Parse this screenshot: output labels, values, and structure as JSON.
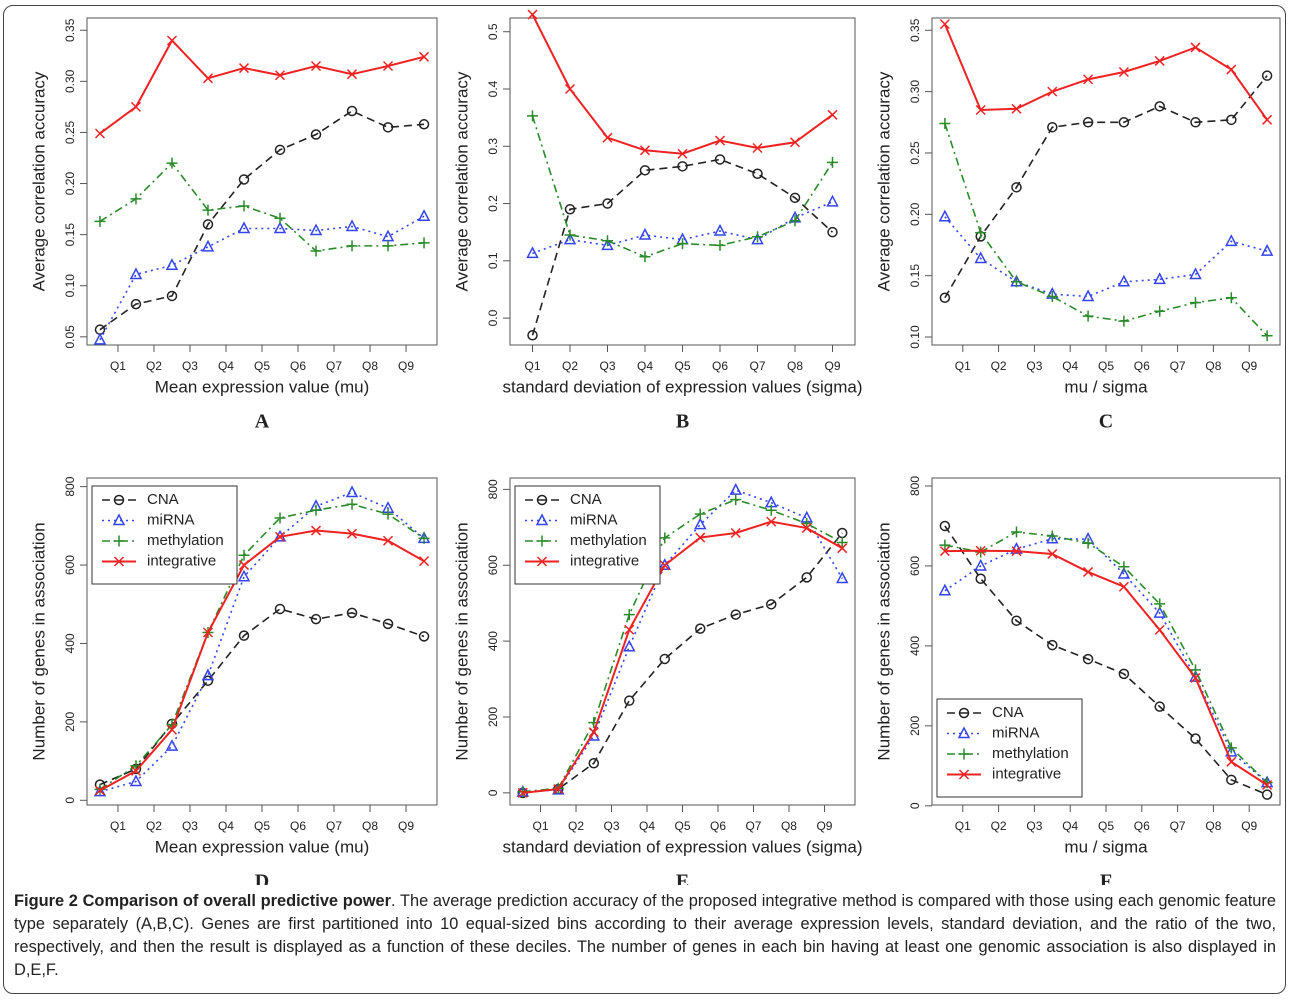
{
  "chart_data": [
    {
      "type": "line",
      "panel_label": "A",
      "xlabel": "Mean expression value (mu)",
      "ylabel": "Average correlation accuracy",
      "x": [
        0.5,
        1.5,
        2.5,
        3.5,
        4.5,
        5.5,
        6.5,
        7.5,
        8.5,
        9.5
      ],
      "xlim": [
        0.14,
        9.86
      ],
      "xticks": [
        {
          "value": 1,
          "label": "Q1"
        },
        {
          "value": 2,
          "label": "Q2"
        },
        {
          "value": 3,
          "label": "Q3"
        },
        {
          "value": 4,
          "label": "Q4"
        },
        {
          "value": 5,
          "label": "Q5"
        },
        {
          "value": 6,
          "label": "Q6"
        },
        {
          "value": 7,
          "label": "Q7"
        },
        {
          "value": 8,
          "label": "Q8"
        },
        {
          "value": 9,
          "label": "Q9"
        }
      ],
      "ylim": [
        0.042,
        0.362
      ],
      "yticks": [
        0.05,
        {
          "value": 0.1,
          "label": "0.10"
        },
        0.15,
        {
          "value": 0.2,
          "label": "0.20"
        },
        0.25,
        {
          "value": 0.3,
          "label": "0.30"
        },
        0.35
      ],
      "series": [
        {
          "color": "#222222",
          "marker": "circle",
          "linestyle": "dashed",
          "values": [
            0.057,
            0.082,
            0.09,
            0.16,
            0.204,
            0.233,
            0.248,
            0.271,
            0.255,
            0.258
          ]
        },
        {
          "color": "#3344ee",
          "marker": "triangle",
          "linestyle": "dotted",
          "values": [
            0.047,
            0.111,
            0.12,
            0.138,
            0.156,
            0.156,
            0.154,
            0.158,
            0.148,
            0.168
          ]
        },
        {
          "color": "#2a8a2a",
          "marker": "plus",
          "linestyle": "dashdot",
          "values": [
            0.163,
            0.185,
            0.22,
            0.174,
            0.178,
            0.166,
            0.134,
            0.139,
            0.139,
            0.142
          ]
        },
        {
          "color": "#ee2222",
          "marker": "cross",
          "linestyle": "solid",
          "values": [
            0.249,
            0.275,
            0.34,
            0.303,
            0.313,
            0.306,
            0.315,
            0.307,
            0.315,
            0.324
          ]
        }
      ]
    },
    {
      "type": "line",
      "panel_label": "B",
      "xlabel": "standard deviation of expression values (sigma)",
      "ylabel": "Average correlation accuracy",
      "x": [
        1,
        2,
        3,
        4,
        5,
        6,
        7,
        8,
        9
      ],
      "xlim": [
        0.4,
        9.6
      ],
      "xticks": [
        {
          "value": 1,
          "label": "Q1"
        },
        {
          "value": 2,
          "label": "Q2"
        },
        {
          "value": 3,
          "label": "Q3"
        },
        {
          "value": 4,
          "label": "Q4"
        },
        {
          "value": 5,
          "label": "Q5"
        },
        {
          "value": 6,
          "label": "Q6"
        },
        {
          "value": 7,
          "label": "Q7"
        },
        {
          "value": 8,
          "label": "Q8"
        },
        {
          "value": 9,
          "label": "Q9"
        }
      ],
      "ylim": [
        -0.047,
        0.524
      ],
      "yticks": [
        {
          "value": 0,
          "label": "0.0"
        },
        0.1,
        0.2,
        0.3,
        0.4,
        0.5
      ],
      "series": [
        {
          "color": "#222222",
          "marker": "circle",
          "linestyle": "dashed",
          "values": [
            -0.03,
            0.19,
            0.2,
            0.258,
            0.265,
            0.277,
            0.252,
            0.21,
            0.15
          ]
        },
        {
          "color": "#3344ee",
          "marker": "triangle",
          "linestyle": "dotted",
          "values": [
            0.113,
            0.137,
            0.127,
            0.145,
            0.137,
            0.152,
            0.137,
            0.175,
            0.203
          ]
        },
        {
          "color": "#2a8a2a",
          "marker": "plus",
          "linestyle": "dashdot",
          "values": [
            0.353,
            0.145,
            0.135,
            0.107,
            0.13,
            0.127,
            0.142,
            0.17,
            0.272
          ]
        },
        {
          "color": "#ee2222",
          "marker": "cross",
          "linestyle": "solid",
          "values": [
            0.53,
            0.4,
            0.315,
            0.293,
            0.287,
            0.31,
            0.297,
            0.307,
            0.355
          ]
        }
      ]
    },
    {
      "type": "line",
      "panel_label": "C",
      "xlabel": "mu / sigma",
      "ylabel": "Average correlation accuracy",
      "x": [
        0.5,
        1.5,
        2.5,
        3.5,
        4.5,
        5.5,
        6.5,
        7.5,
        8.5,
        9.5
      ],
      "xlim": [
        0.14,
        9.86
      ],
      "xticks": [
        {
          "value": 1,
          "label": "Q1"
        },
        {
          "value": 2,
          "label": "Q2"
        },
        {
          "value": 3,
          "label": "Q3"
        },
        {
          "value": 4,
          "label": "Q4"
        },
        {
          "value": 5,
          "label": "Q5"
        },
        {
          "value": 6,
          "label": "Q6"
        },
        {
          "value": 7,
          "label": "Q7"
        },
        {
          "value": 8,
          "label": "Q8"
        },
        {
          "value": 9,
          "label": "Q9"
        }
      ],
      "ylim": [
        0.0935,
        0.36
      ],
      "yticks": [
        {
          "value": 0.1,
          "label": "0.10"
        },
        0.15,
        {
          "value": 0.2,
          "label": "0.20"
        },
        0.25,
        {
          "value": 0.3,
          "label": "0.30"
        },
        0.35
      ],
      "series": [
        {
          "color": "#222222",
          "marker": "circle",
          "linestyle": "dashed",
          "values": [
            0.132,
            0.182,
            0.222,
            0.271,
            0.275,
            0.275,
            0.288,
            0.275,
            0.277,
            0.313
          ]
        },
        {
          "color": "#3344ee",
          "marker": "triangle",
          "linestyle": "dotted",
          "values": [
            0.198,
            0.164,
            0.145,
            0.135,
            0.133,
            0.145,
            0.147,
            0.151,
            0.178,
            0.17
          ]
        },
        {
          "color": "#2a8a2a",
          "marker": "plus",
          "linestyle": "dashdot",
          "values": [
            0.274,
            0.185,
            0.145,
            0.133,
            0.117,
            0.113,
            0.121,
            0.128,
            0.132,
            0.101
          ]
        },
        {
          "color": "#ee2222",
          "marker": "cross",
          "linestyle": "solid",
          "values": [
            0.355,
            0.285,
            0.286,
            0.3,
            0.31,
            0.316,
            0.325,
            0.336,
            0.318,
            0.277
          ]
        }
      ]
    },
    {
      "type": "line",
      "panel_label": "D",
      "xlabel": "Mean expression value (mu)",
      "ylabel": "Number of genes in association",
      "legend": "upper left",
      "x": [
        0.5,
        1.5,
        2.5,
        3.5,
        4.5,
        5.5,
        6.5,
        7.5,
        8.5,
        9.5
      ],
      "xlim": [
        0.14,
        9.86
      ],
      "xticks": [
        {
          "value": 1,
          "label": "Q1"
        },
        {
          "value": 2,
          "label": "Q2"
        },
        {
          "value": 3,
          "label": "Q3"
        },
        {
          "value": 4,
          "label": "Q4"
        },
        {
          "value": 5,
          "label": "Q5"
        },
        {
          "value": 6,
          "label": "Q6"
        },
        {
          "value": 7,
          "label": "Q7"
        },
        {
          "value": 8,
          "label": "Q8"
        },
        {
          "value": 9,
          "label": "Q9"
        }
      ],
      "ylim": [
        -12,
        822
      ],
      "yticks": [
        0,
        200,
        400,
        600,
        800
      ],
      "series": [
        {
          "name": "CNA",
          "color": "#222222",
          "marker": "circle",
          "linestyle": "dashed",
          "values": [
            40,
            80,
            195,
            305,
            420,
            488,
            462,
            478,
            450,
            418
          ]
        },
        {
          "name": "miRNA",
          "color": "#3344ee",
          "marker": "triangle",
          "linestyle": "dotted",
          "values": [
            22,
            48,
            138,
            318,
            570,
            672,
            750,
            785,
            745,
            668
          ]
        },
        {
          "name": "methylation",
          "color": "#2a8a2a",
          "marker": "plus",
          "linestyle": "dashdot",
          "values": [
            28,
            88,
            193,
            428,
            625,
            720,
            740,
            755,
            730,
            668
          ]
        },
        {
          "name": "integrative",
          "color": "#ee2222",
          "marker": "cross",
          "linestyle": "solid",
          "values": [
            25,
            75,
            180,
            428,
            600,
            672,
            688,
            680,
            662,
            610
          ]
        }
      ]
    },
    {
      "type": "line",
      "panel_label": "E",
      "xlabel": "standard deviation of expression values (sigma)",
      "ylabel": "Number of genes in association",
      "legend": "upper left",
      "x": [
        0.5,
        1.5,
        2.5,
        3.5,
        4.5,
        5.5,
        6.5,
        7.5,
        8.5,
        9.5
      ],
      "xlim": [
        0.14,
        9.86
      ],
      "xticks": [
        {
          "value": 1,
          "label": "Q1"
        },
        {
          "value": 2,
          "label": "Q2"
        },
        {
          "value": 3,
          "label": "Q3"
        },
        {
          "value": 4,
          "label": "Q4"
        },
        {
          "value": 5,
          "label": "Q5"
        },
        {
          "value": 6,
          "label": "Q6"
        },
        {
          "value": 7,
          "label": "Q7"
        },
        {
          "value": 8,
          "label": "Q8"
        },
        {
          "value": 9,
          "label": "Q9"
        }
      ],
      "ylim": [
        -32,
        830
      ],
      "yticks": [
        0,
        200,
        400,
        600,
        800
      ],
      "series": [
        {
          "name": "CNA",
          "color": "#222222",
          "marker": "circle",
          "linestyle": "dashed",
          "values": [
            0,
            10,
            78,
            243,
            353,
            433,
            470,
            497,
            568,
            685
          ]
        },
        {
          "name": "miRNA",
          "color": "#3344ee",
          "marker": "triangle",
          "linestyle": "dotted",
          "values": [
            2,
            8,
            150,
            385,
            600,
            707,
            798,
            765,
            725,
            565
          ]
        },
        {
          "name": "methylation",
          "color": "#2a8a2a",
          "marker": "plus",
          "linestyle": "dashdot",
          "values": [
            3,
            12,
            185,
            470,
            672,
            735,
            773,
            745,
            710,
            660
          ]
        },
        {
          "name": "integrative",
          "color": "#ee2222",
          "marker": "cross",
          "linestyle": "solid",
          "values": [
            0,
            10,
            160,
            430,
            600,
            673,
            685,
            715,
            698,
            645
          ]
        }
      ]
    },
    {
      "type": "line",
      "panel_label": "F",
      "xlabel": "mu / sigma",
      "ylabel": "Number of genes in association",
      "legend": "lower left",
      "x": [
        0.5,
        1.5,
        2.5,
        3.5,
        4.5,
        5.5,
        6.5,
        7.5,
        8.5,
        9.5
      ],
      "xlim": [
        0.14,
        9.86
      ],
      "xticks": [
        {
          "value": 1,
          "label": "Q1"
        },
        {
          "value": 2,
          "label": "Q2"
        },
        {
          "value": 3,
          "label": "Q3"
        },
        {
          "value": 4,
          "label": "Q4"
        },
        {
          "value": 5,
          "label": "Q5"
        },
        {
          "value": 6,
          "label": "Q6"
        },
        {
          "value": 7,
          "label": "Q7"
        },
        {
          "value": 8,
          "label": "Q8"
        },
        {
          "value": 9,
          "label": "Q9"
        }
      ],
      "ylim": [
        2,
        820
      ],
      "yticks": [
        0,
        200,
        400,
        600,
        800
      ],
      "series": [
        {
          "name": "CNA",
          "color": "#222222",
          "marker": "circle",
          "linestyle": "dashed",
          "values": [
            700,
            568,
            463,
            402,
            367,
            330,
            248,
            168,
            65,
            28
          ]
        },
        {
          "name": "miRNA",
          "color": "#3344ee",
          "marker": "triangle",
          "linestyle": "dotted",
          "values": [
            538,
            600,
            642,
            668,
            667,
            580,
            482,
            322,
            135,
            58
          ]
        },
        {
          "name": "methylation",
          "color": "#2a8a2a",
          "marker": "plus",
          "linestyle": "dashdot",
          "values": [
            652,
            635,
            685,
            675,
            657,
            598,
            505,
            340,
            145,
            58
          ]
        },
        {
          "name": "integrative",
          "color": "#ee2222",
          "marker": "cross",
          "linestyle": "solid",
          "values": [
            637,
            638,
            637,
            630,
            585,
            548,
            440,
            320,
            110,
            52
          ]
        }
      ]
    }
  ],
  "caption": {
    "title": "Figure 2 Comparison of overall predictive power",
    "text": ". The average prediction accuracy of the proposed integrative method is compared with those using each genomic feature type separately (A,B,C). Genes are first partitioned into 10 equal-sized bins according to their average expression levels, standard deviation, and the ratio of the two, respectively, and then the result is displayed as a function of these deciles. The number of genes in each bin having at least one genomic association is also displayed in D,E,F."
  }
}
